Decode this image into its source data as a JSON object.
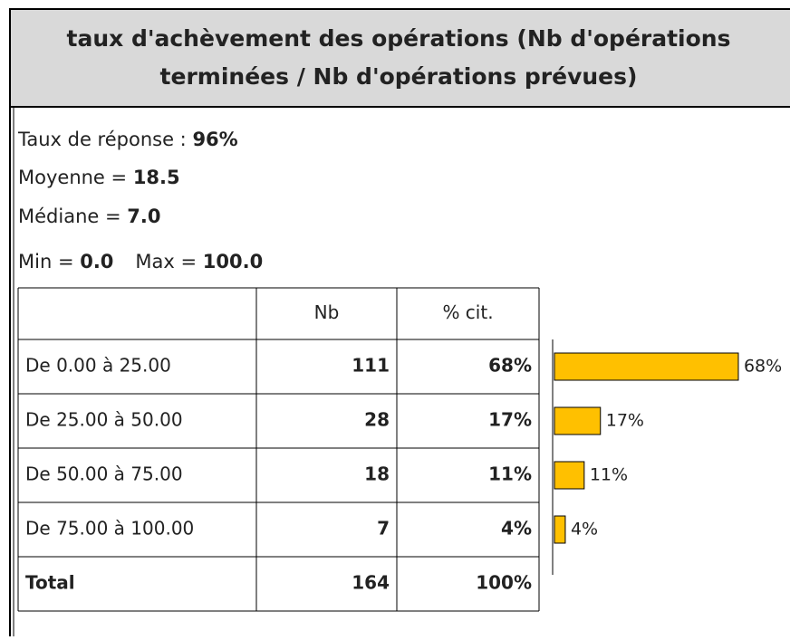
{
  "header": {
    "title": "taux d'achèvement des opérations (Nb d'opérations terminées / Nb d'opérations prévues)"
  },
  "stats": [
    {
      "items": [
        {
          "label": "Taux de réponse : ",
          "value": "96%"
        }
      ]
    },
    {
      "items": [
        {
          "label": "Moyenne = ",
          "value": "18.5"
        }
      ]
    },
    {
      "items": [
        {
          "label": "Médiane = ",
          "value": "7.0"
        }
      ]
    },
    {
      "items": [
        {
          "label": "Min = ",
          "value": "0.0"
        },
        {
          "label": "Max = ",
          "value": "100.0"
        }
      ]
    }
  ],
  "table": {
    "columns": [
      "Nb",
      "% cit."
    ],
    "bar_color": "#ffc000",
    "rows": [
      {
        "label": "De 0.00 à 25.00",
        "nb": 111,
        "pct_value": 68,
        "pct_label": "68%"
      },
      {
        "label": "De 25.00 à 50.00",
        "nb": 28,
        "pct_value": 17,
        "pct_label": "17%"
      },
      {
        "label": "De 50.00 à 75.00",
        "nb": 18,
        "pct_value": 11,
        "pct_label": "11%"
      },
      {
        "label": "De 75.00 à 100.00",
        "nb": 7,
        "pct_value": 4,
        "pct_label": "4%"
      }
    ],
    "total": {
      "label": "Total",
      "nb": 164,
      "pct_label": "100%"
    }
  }
}
